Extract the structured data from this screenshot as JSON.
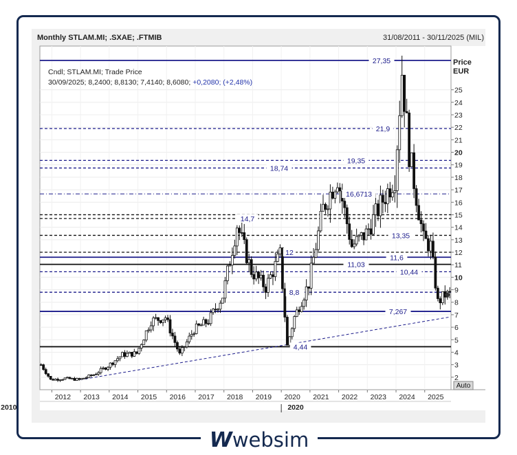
{
  "header": {
    "title": "Monthly STLAM.MI; .SXAE; .FTMIB",
    "date_range": "31/08/2011 - 30/11/2025 (MIL)"
  },
  "legend": {
    "line1": "Cndl; STLAM.MI; Trade Price",
    "line2_values": "30/09/2025; 8,2400; 8,8130; 7,4140; 8,6080;",
    "line2_change": "+0,2080; (+2,48%)"
  },
  "chart_data": {
    "type": "candlestick",
    "instrument": "STLAM.MI",
    "frequency": "Monthly",
    "y_unit_label": [
      "Price",
      "EUR"
    ],
    "ylim": [
      1,
      28.5
    ],
    "y_ticks": [
      2,
      3,
      4,
      5,
      6,
      7,
      8,
      9,
      10,
      11,
      12,
      13,
      14,
      15,
      16,
      17,
      18,
      19,
      20,
      21,
      22,
      23,
      24,
      25
    ],
    "y_bold_ticks": [
      10,
      20
    ],
    "x_year_ticks": [
      "2012",
      "2013",
      "2014",
      "2015",
      "2016",
      "2017",
      "2018",
      "2019",
      "2020",
      "2021",
      "2022",
      "2023",
      "2024",
      "2025"
    ],
    "x_decades": [
      "2010",
      "2020"
    ],
    "price_path": [
      {
        "date": "2011-08",
        "price": 3.0
      },
      {
        "date": "2011-12",
        "price": 1.8
      },
      {
        "date": "2012-06",
        "price": 1.9
      },
      {
        "date": "2012-12",
        "price": 1.8
      },
      {
        "date": "2013-06",
        "price": 2.2
      },
      {
        "date": "2013-12",
        "price": 2.9
      },
      {
        "date": "2014-06",
        "price": 3.8
      },
      {
        "date": "2014-12",
        "price": 3.9
      },
      {
        "date": "2015-06",
        "price": 6.5
      },
      {
        "date": "2015-12",
        "price": 6.8
      },
      {
        "date": "2016-06",
        "price": 3.8
      },
      {
        "date": "2016-12",
        "price": 5.8
      },
      {
        "date": "2017-06",
        "price": 6.5
      },
      {
        "date": "2017-12",
        "price": 8.5
      },
      {
        "date": "2018-06",
        "price": 14.2
      },
      {
        "date": "2018-12",
        "price": 10.5
      },
      {
        "date": "2019-06",
        "price": 9.2
      },
      {
        "date": "2019-12",
        "price": 11.8
      },
      {
        "date": "2020-03",
        "price": 4.5
      },
      {
        "date": "2020-06",
        "price": 6.8
      },
      {
        "date": "2020-12",
        "price": 9.5
      },
      {
        "date": "2021-06",
        "price": 15.5
      },
      {
        "date": "2021-12",
        "price": 18.0
      },
      {
        "date": "2022-06",
        "price": 12.5
      },
      {
        "date": "2022-12",
        "price": 13.5
      },
      {
        "date": "2023-06",
        "price": 15.8
      },
      {
        "date": "2023-12",
        "price": 18.0
      },
      {
        "date": "2024-03",
        "price": 26.5
      },
      {
        "date": "2024-06",
        "price": 20.0
      },
      {
        "date": "2024-12",
        "price": 13.0
      },
      {
        "date": "2025-03",
        "price": 12.5
      },
      {
        "date": "2025-06",
        "price": 8.0
      },
      {
        "date": "2025-09",
        "price": 8.6
      }
    ],
    "levels": [
      {
        "label": "27,35",
        "value": 27.35,
        "style": "solid-navy"
      },
      {
        "label": "21,9",
        "value": 21.9,
        "style": "dashed-navy"
      },
      {
        "label": "19,35",
        "value": 19.35,
        "style": "dashed-navy"
      },
      {
        "label": "18,74",
        "value": 18.74,
        "style": "dashed-navy"
      },
      {
        "label": "16,6713",
        "value": 16.6713,
        "style": "dashdot-navy"
      },
      {
        "label": "",
        "value": 15.0,
        "style": "dashed-black"
      },
      {
        "label": "14,7",
        "value": 14.7,
        "style": "dashed-black"
      },
      {
        "label": "13,35",
        "value": 13.35,
        "style": "dashed-black"
      },
      {
        "label": "12",
        "value": 12.0,
        "style": "dashed-black"
      },
      {
        "label": "11,6",
        "value": 11.6,
        "style": "solid-navy"
      },
      {
        "label": "11,03",
        "value": 11.03,
        "style": "solid-black"
      },
      {
        "label": "10,44",
        "value": 10.44,
        "style": "dashed-navy"
      },
      {
        "label": "8,8",
        "value": 8.8,
        "style": "dashed-navy"
      },
      {
        "label": "7,267",
        "value": 7.267,
        "style": "solid-navy"
      },
      {
        "label": "4,44",
        "value": 4.44,
        "style": "solid-black"
      }
    ],
    "trendline": {
      "from": {
        "date": "2013-01",
        "price": 1.8
      },
      "to": {
        "date": "2025-11",
        "price": 6.8
      },
      "style": "dashed-navy"
    },
    "last_price_marker": 8.6,
    "auto_label": "Auto"
  },
  "brand": {
    "mark": "W",
    "name": "websim"
  }
}
